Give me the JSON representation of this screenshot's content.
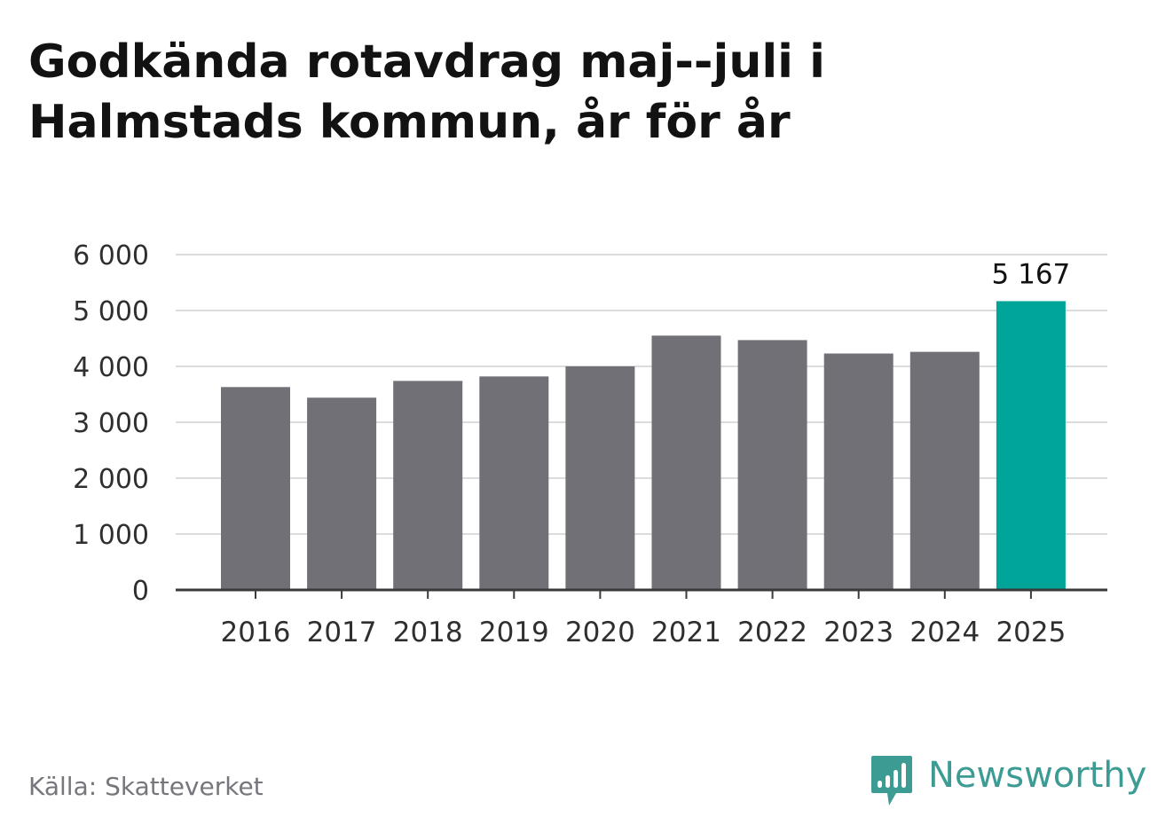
{
  "title": {
    "line1": "Godkända rotavdrag maj--juli i",
    "line2": "Halmstads kommun, år för år"
  },
  "source": "Källa: Skatteverket",
  "brand": {
    "name": "Newsworthy",
    "icon": "bar-chart-speech-bubble-icon",
    "color": "#3c9c94"
  },
  "colors": {
    "bar": "#717076",
    "highlight": "#00a59a",
    "grid": "#dcdcdc",
    "axis": "#3a3a3a",
    "label": "#2f2f2f"
  },
  "chart_data": {
    "type": "bar",
    "categories": [
      "2016",
      "2017",
      "2018",
      "2019",
      "2020",
      "2021",
      "2022",
      "2023",
      "2024",
      "2025"
    ],
    "values": [
      3630,
      3440,
      3740,
      3820,
      4000,
      4550,
      4470,
      4230,
      4260,
      5167
    ],
    "highlight_index": 9,
    "data_labels": [
      {
        "index": 9,
        "text": "5 167"
      }
    ],
    "y_ticks": [
      0,
      1000,
      2000,
      3000,
      4000,
      5000,
      6000
    ],
    "y_tick_labels": [
      "0",
      "1 000",
      "2 000",
      "3 000",
      "4 000",
      "5 000",
      "6 000"
    ],
    "ylim": [
      0,
      6000
    ],
    "grid": true
  }
}
